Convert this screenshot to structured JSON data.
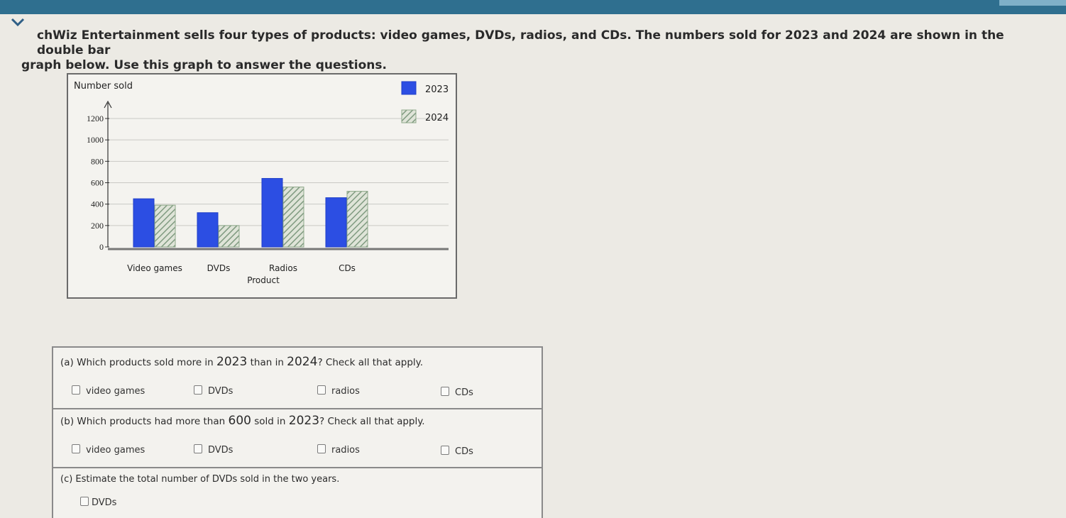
{
  "intro": {
    "line1": "chWiz Entertainment sells four types of products: video games, DVDs, radios, and CDs. The numbers sold for 2023 and 2024 are shown in the double bar",
    "line2": "graph below. Use this graph to answer the questions."
  },
  "chart_data": {
    "type": "bar",
    "ylabel": "Number sold",
    "xlabel": "Product",
    "categories": [
      "Video games",
      "DVDs",
      "Radios",
      "CDs"
    ],
    "series": [
      {
        "name": "2023",
        "values": [
          450,
          320,
          640,
          460
        ],
        "color": "#2c4ee3",
        "pattern": "solid"
      },
      {
        "name": "2024",
        "values": [
          390,
          200,
          560,
          520
        ],
        "color": "#8ea88a",
        "pattern": "hatched"
      }
    ],
    "ylim": [
      0,
      1200
    ],
    "yticks": [
      0,
      200,
      400,
      600,
      800,
      1000,
      1200
    ],
    "grid": true,
    "legend_position": "top-right"
  },
  "questions": {
    "a": {
      "prefix": "(a) Which products sold more in ",
      "year": "2023",
      "middle": " than in ",
      "year2": "2024",
      "suffix": "? Check all that apply.",
      "options": [
        "video games",
        "DVDs",
        "radios",
        "CDs"
      ]
    },
    "b": {
      "prefix": "(b) Which products had more than ",
      "num": "600",
      "middle": " sold in ",
      "year": "2023",
      "suffix": "? Check all that apply.",
      "options": [
        "video games",
        "DVDs",
        "radios",
        "CDs"
      ]
    },
    "c": {
      "text": "(c) Estimate the total number of DVDs sold in the two years.",
      "answer_unit": "DVDs"
    }
  }
}
